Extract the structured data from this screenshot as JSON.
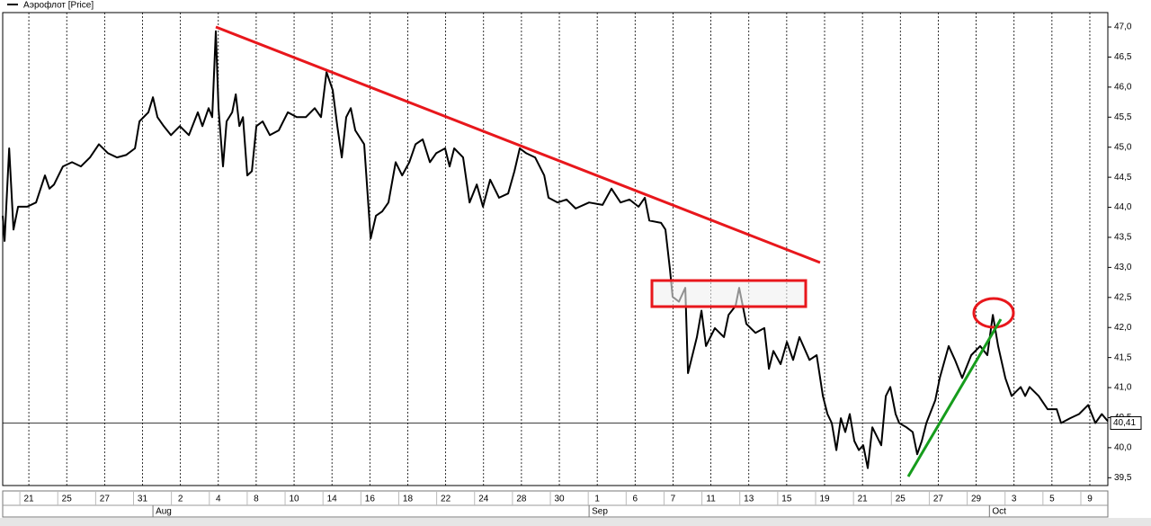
{
  "chart_data": {
    "type": "line",
    "series": [
      {
        "name": "Аэрофлот [Price]",
        "color": "#000000",
        "values": [
          43.86,
          43.44,
          44.98,
          43.63,
          44.01,
          44.01,
          44.08,
          44.53,
          44.31,
          44.38,
          44.68,
          44.75,
          44.68,
          44.83,
          45.05,
          44.9,
          44.83,
          44.87,
          44.98,
          45.43,
          45.58,
          45.83,
          45.5,
          45.35,
          45.2,
          45.35,
          45.2,
          45.58,
          45.35,
          45.65,
          45.5,
          46.93,
          45.65,
          44.68,
          45.43,
          45.58,
          45.88,
          45.35,
          45.5,
          44.53,
          44.6,
          45.35,
          45.43,
          45.2,
          45.28,
          45.58,
          45.5,
          45.5,
          45.65,
          45.5,
          46.25,
          45.95,
          45.35,
          44.83,
          45.5,
          45.65,
          45.28,
          45.05,
          43.48,
          43.86,
          43.93,
          44.08,
          44.75,
          44.53,
          44.75,
          45.05,
          45.13,
          44.75,
          44.9,
          44.98,
          44.68,
          44.98,
          44.83,
          44.08,
          44.38,
          44.01,
          44.46,
          44.16,
          44.23,
          44.6,
          44.98,
          44.9,
          44.83,
          44.53,
          44.16,
          44.08,
          44.13,
          43.98,
          44.08,
          44.04,
          44.31,
          44.08,
          44.13,
          44.01,
          44.16,
          43.78,
          43.74,
          43.63,
          42.96,
          42.51,
          42.43,
          42.66,
          41.24,
          41.84,
          42.28,
          41.69,
          41.99,
          41.84,
          42.21,
          42.36,
          42.66,
          42.06,
          41.91,
          41.99,
          41.31,
          41.61,
          41.39,
          41.76,
          41.46,
          41.84,
          41.46,
          41.54,
          40.86,
          40.56,
          40.41,
          39.96,
          40.49,
          40.26,
          40.56,
          40.11,
          39.96,
          40.04,
          39.66,
          40.34,
          40.04,
          40.86,
          41.01,
          40.56,
          40.41,
          40.34,
          40.26,
          39.89,
          40.11,
          40.41,
          40.79,
          41.16,
          41.69,
          41.46,
          41.16,
          41.54,
          41.69,
          41.54,
          42.21,
          41.69,
          41.16,
          40.86,
          41.01,
          40.86,
          41.01,
          40.86,
          40.64,
          40.64,
          40.41,
          40.49,
          40.56,
          40.71,
          40.41,
          40.56,
          40.44
        ]
      }
    ],
    "x": [
      -1.38,
      -1.28,
      -1.04,
      -0.81,
      -0.57,
      -0.09,
      0.38,
      0.85,
      1.09,
      1.33,
      1.8,
      2.28,
      2.75,
      3.23,
      3.7,
      4.18,
      4.65,
      5.13,
      5.6,
      5.84,
      6.31,
      6.55,
      6.79,
      7.12,
      7.5,
      7.97,
      8.45,
      8.92,
      9.16,
      9.49,
      9.68,
      9.87,
      10.01,
      10.25,
      10.44,
      10.73,
      10.92,
      11.11,
      11.3,
      11.53,
      11.77,
      12.01,
      12.34,
      12.72,
      13.19,
      13.67,
      14.14,
      14.62,
      15.09,
      15.42,
      15.71,
      16.04,
      16.28,
      16.52,
      16.75,
      16.99,
      17.23,
      17.7,
      18.04,
      18.32,
      18.65,
      18.98,
      19.36,
      19.7,
      20.08,
      20.41,
      20.79,
      21.17,
      21.5,
      21.97,
      22.21,
      22.45,
      22.92,
      23.26,
      23.64,
      23.97,
      24.35,
      24.82,
      25.3,
      25.63,
      25.91,
      26.25,
      26.72,
      27.2,
      27.43,
      27.91,
      28.38,
      28.86,
      29.57,
      30.28,
      30.75,
      31.23,
      31.7,
      32.18,
      32.51,
      32.75,
      33.37,
      33.6,
      33.84,
      33.98,
      34.31,
      34.65,
      34.79,
      35.26,
      35.5,
      35.74,
      36.21,
      36.69,
      36.93,
      37.3,
      37.49,
      37.87,
      38.35,
      38.82,
      39.06,
      39.3,
      39.68,
      40.01,
      40.34,
      40.67,
      41.2,
      41.58,
      41.91,
      42.15,
      42.38,
      42.62,
      42.86,
      43.09,
      43.33,
      43.57,
      43.81,
      44.04,
      44.28,
      44.52,
      44.99,
      45.23,
      45.47,
      45.75,
      45.94,
      46.32,
      46.65,
      46.89,
      47.13,
      47.37,
      47.84,
      48.08,
      48.55,
      48.88,
      49.26,
      49.74,
      50.21,
      50.59,
      50.88,
      51.16,
      51.54,
      51.87,
      52.35,
      52.59,
      52.82,
      53.3,
      53.77,
      54.25,
      54.48,
      54.96,
      55.43,
      55.91,
      56.29,
      56.63,
      56.95
    ],
    "xlim": [
      -1.38,
      56.95
    ],
    "xticks": [
      {
        "value": 0,
        "label": "21"
      },
      {
        "value": 2,
        "label": "25"
      },
      {
        "value": 4,
        "label": "27"
      },
      {
        "value": 6,
        "label": "31"
      },
      {
        "value": 8,
        "label": "2"
      },
      {
        "value": 10,
        "label": "4"
      },
      {
        "value": 12,
        "label": "8"
      },
      {
        "value": 14,
        "label": "10"
      },
      {
        "value": 16,
        "label": "14"
      },
      {
        "value": 18,
        "label": "16"
      },
      {
        "value": 20,
        "label": "18"
      },
      {
        "value": 22,
        "label": "22"
      },
      {
        "value": 24,
        "label": "24"
      },
      {
        "value": 26,
        "label": "28"
      },
      {
        "value": 28,
        "label": "30"
      },
      {
        "value": 30,
        "label": "1"
      },
      {
        "value": 32,
        "label": "6"
      },
      {
        "value": 34,
        "label": "7"
      },
      {
        "value": 36,
        "label": "11"
      },
      {
        "value": 38,
        "label": "13"
      },
      {
        "value": 40,
        "label": "15"
      },
      {
        "value": 42,
        "label": "19"
      },
      {
        "value": 44,
        "label": "21"
      },
      {
        "value": 46,
        "label": "25"
      },
      {
        "value": 48,
        "label": "27"
      },
      {
        "value": 50,
        "label": "29"
      },
      {
        "value": 52,
        "label": "3"
      },
      {
        "value": 54,
        "label": "5"
      },
      {
        "value": 56,
        "label": "9"
      }
    ],
    "month_ticks": [
      {
        "value": 6.55,
        "label": "Aug"
      },
      {
        "value": 29.57,
        "label": "Sep"
      },
      {
        "value": 50.7,
        "label": "Oct"
      }
    ],
    "ylim": [
      39.37,
      47.24
    ],
    "yticks": [
      {
        "value": 39.5,
        "label": "39,5"
      },
      {
        "value": 40,
        "label": "40,0"
      },
      {
        "value": 40.5,
        "label": "40,5"
      },
      {
        "value": 41,
        "label": "41,0"
      },
      {
        "value": 41.5,
        "label": "41,5"
      },
      {
        "value": 42,
        "label": "42,0"
      },
      {
        "value": 42.5,
        "label": "42,5"
      },
      {
        "value": 43,
        "label": "43,0"
      },
      {
        "value": 43.5,
        "label": "43,5"
      },
      {
        "value": 44,
        "label": "44,0"
      },
      {
        "value": 44.5,
        "label": "44,5"
      },
      {
        "value": 45,
        "label": "45,0"
      },
      {
        "value": 45.5,
        "label": "45,5"
      },
      {
        "value": 46,
        "label": "46,0"
      },
      {
        "value": 46.5,
        "label": "46,5"
      },
      {
        "value": 47,
        "label": "47,0"
      }
    ],
    "last_value": {
      "value": 40.41,
      "label": "40,41"
    },
    "grid": true
  }
}
